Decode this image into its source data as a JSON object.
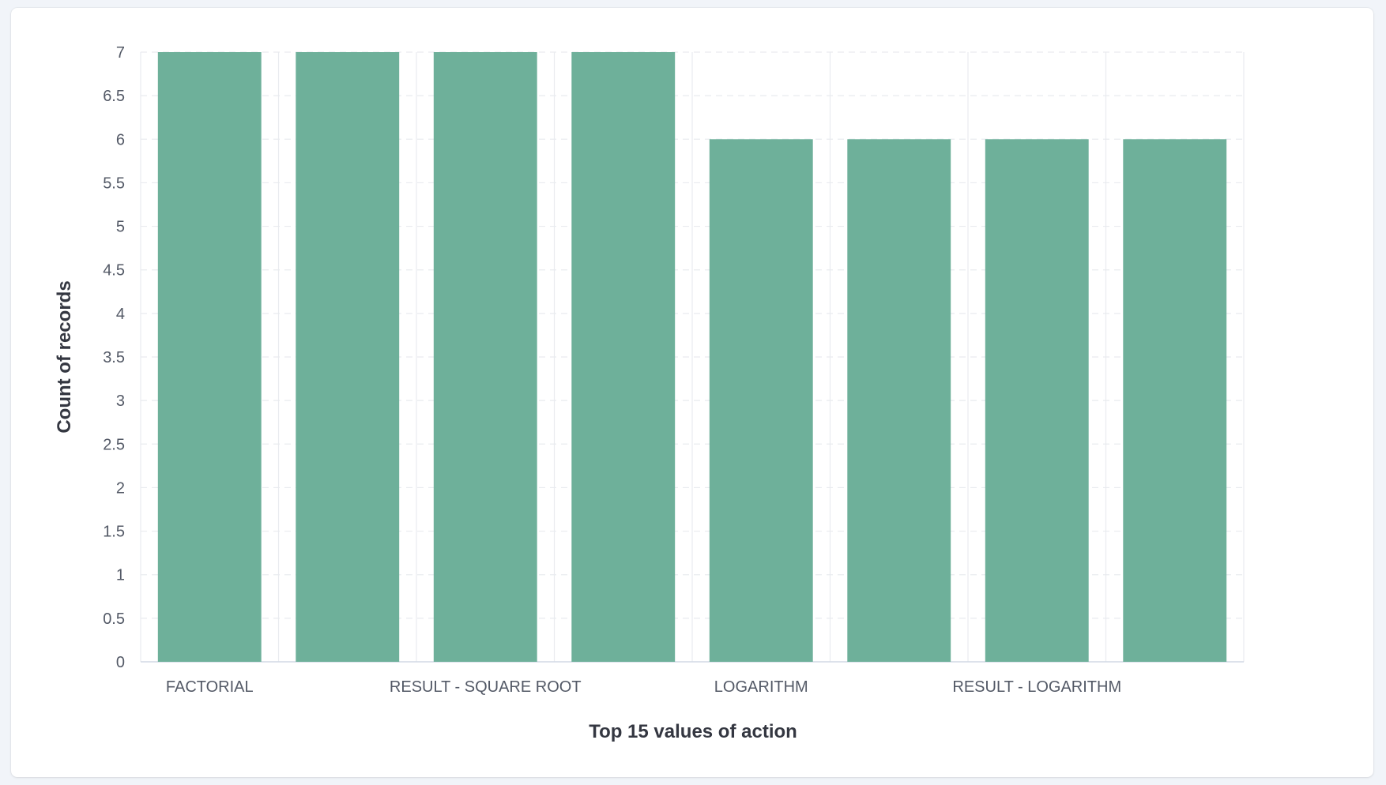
{
  "chart_data": {
    "type": "bar",
    "categories": [
      "FACTORIAL",
      "",
      "RESULT - SQUARE ROOT",
      "",
      "LOGARITHM",
      "",
      "RESULT - LOGARITHM",
      ""
    ],
    "values": [
      7,
      7,
      7,
      7,
      6,
      6,
      6,
      6
    ],
    "xlabel": "Top 15 values of action",
    "ylabel": "Count of records",
    "ylim": [
      0,
      7
    ],
    "yticks": [
      0,
      0.5,
      1,
      1.5,
      2,
      2.5,
      3,
      3.5,
      4,
      4.5,
      5,
      5.5,
      6,
      6.5,
      7
    ],
    "grid": true,
    "bar_color": "#6eb09a",
    "gridline_color": "#e9ebef"
  }
}
